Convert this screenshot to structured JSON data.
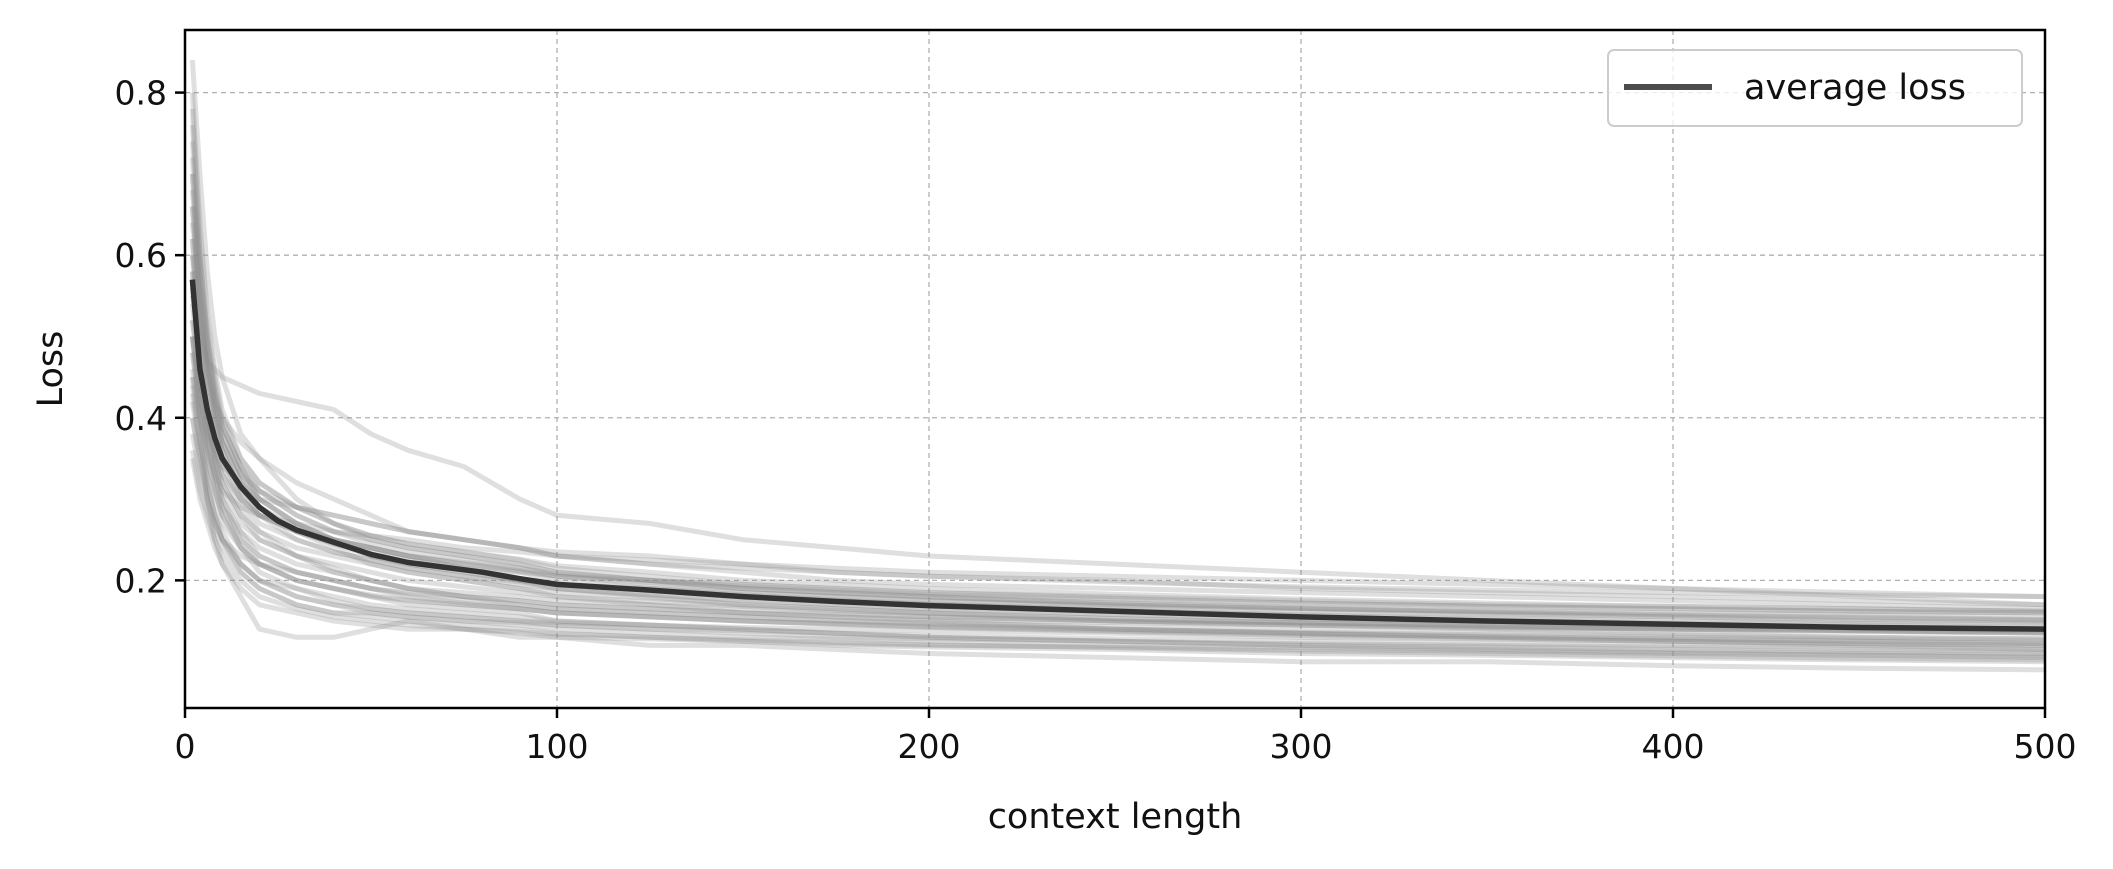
{
  "chart_data": {
    "type": "line",
    "title": "",
    "xlabel": "context length",
    "ylabel": "Loss",
    "xlim": [
      0,
      500
    ],
    "ylim": [
      0.043,
      0.877
    ],
    "xticks": [
      0,
      100,
      200,
      300,
      400,
      500
    ],
    "xtick_labels": [
      "0",
      "100",
      "200",
      "300",
      "400",
      "500"
    ],
    "yticks": [
      0.2,
      0.4,
      0.6,
      0.8
    ],
    "ytick_labels": [
      "0.2",
      "0.4",
      "0.6",
      "0.8"
    ],
    "grid": true,
    "legend": {
      "position": "top-right",
      "entries": [
        "average loss"
      ]
    },
    "colors": {
      "average": "#333333",
      "individual": "#8c8c8c",
      "legend_line": "#4d4d4d",
      "grid": "#b0b0b0"
    },
    "series": [
      {
        "name": "average loss",
        "x": [
          2,
          4,
          6,
          8,
          10,
          15,
          20,
          25,
          30,
          40,
          50,
          60,
          70,
          80,
          90,
          100,
          125,
          150,
          175,
          200,
          250,
          300,
          350,
          400,
          450,
          500
        ],
        "values": [
          0.57,
          0.46,
          0.41,
          0.375,
          0.35,
          0.315,
          0.29,
          0.273,
          0.262,
          0.247,
          0.232,
          0.222,
          0.216,
          0.21,
          0.202,
          0.195,
          0.188,
          0.18,
          0.174,
          0.169,
          0.162,
          0.155,
          0.15,
          0.146,
          0.142,
          0.14
        ]
      }
    ],
    "individual_runs": {
      "count": 40,
      "x": [
        2,
        4,
        6,
        8,
        10,
        15,
        20,
        30,
        40,
        50,
        60,
        75,
        90,
        100,
        125,
        150,
        175,
        200,
        250,
        300,
        350,
        400,
        450,
        500
      ],
      "runs": [
        [
          0.84,
          0.7,
          0.58,
          0.5,
          0.45,
          0.38,
          0.35,
          0.3,
          0.27,
          0.25,
          0.24,
          0.23,
          0.22,
          0.21,
          0.2,
          0.19,
          0.185,
          0.18,
          0.17,
          0.165,
          0.16,
          0.155,
          0.15,
          0.148
        ],
        [
          0.62,
          0.48,
          0.4,
          0.35,
          0.3,
          0.25,
          0.22,
          0.2,
          0.19,
          0.18,
          0.17,
          0.165,
          0.16,
          0.15,
          0.145,
          0.14,
          0.135,
          0.13,
          0.125,
          0.12,
          0.115,
          0.112,
          0.11,
          0.108
        ],
        [
          0.55,
          0.5,
          0.47,
          0.46,
          0.45,
          0.44,
          0.43,
          0.42,
          0.41,
          0.38,
          0.36,
          0.34,
          0.3,
          0.28,
          0.27,
          0.25,
          0.24,
          0.23,
          0.22,
          0.21,
          0.2,
          0.19,
          0.18,
          0.17
        ],
        [
          0.45,
          0.38,
          0.3,
          0.25,
          0.22,
          0.18,
          0.14,
          0.13,
          0.13,
          0.14,
          0.15,
          0.14,
          0.13,
          0.13,
          0.12,
          0.12,
          0.115,
          0.11,
          0.105,
          0.1,
          0.1,
          0.095,
          0.092,
          0.09
        ],
        [
          0.7,
          0.55,
          0.45,
          0.4,
          0.36,
          0.31,
          0.28,
          0.26,
          0.24,
          0.22,
          0.21,
          0.2,
          0.19,
          0.18,
          0.17,
          0.16,
          0.155,
          0.15,
          0.14,
          0.135,
          0.13,
          0.125,
          0.12,
          0.115
        ],
        [
          0.5,
          0.42,
          0.38,
          0.36,
          0.34,
          0.32,
          0.3,
          0.29,
          0.28,
          0.27,
          0.26,
          0.25,
          0.24,
          0.23,
          0.22,
          0.21,
          0.2,
          0.195,
          0.19,
          0.185,
          0.18,
          0.175,
          0.17,
          0.165
        ],
        [
          0.78,
          0.6,
          0.5,
          0.42,
          0.38,
          0.33,
          0.3,
          0.27,
          0.25,
          0.24,
          0.23,
          0.215,
          0.2,
          0.19,
          0.18,
          0.17,
          0.165,
          0.16,
          0.15,
          0.145,
          0.14,
          0.135,
          0.13,
          0.128
        ],
        [
          0.4,
          0.35,
          0.3,
          0.27,
          0.25,
          0.22,
          0.2,
          0.19,
          0.18,
          0.17,
          0.165,
          0.16,
          0.155,
          0.15,
          0.145,
          0.14,
          0.135,
          0.13,
          0.125,
          0.12,
          0.118,
          0.115,
          0.112,
          0.11
        ],
        [
          0.6,
          0.52,
          0.46,
          0.42,
          0.4,
          0.37,
          0.35,
          0.32,
          0.3,
          0.28,
          0.26,
          0.25,
          0.24,
          0.235,
          0.23,
          0.22,
          0.21,
          0.205,
          0.2,
          0.19,
          0.185,
          0.18,
          0.175,
          0.17
        ],
        [
          0.5,
          0.4,
          0.32,
          0.28,
          0.25,
          0.21,
          0.19,
          0.17,
          0.16,
          0.155,
          0.15,
          0.145,
          0.14,
          0.135,
          0.13,
          0.125,
          0.12,
          0.118,
          0.115,
          0.11,
          0.108,
          0.105,
          0.102,
          0.1
        ],
        [
          0.72,
          0.58,
          0.49,
          0.43,
          0.39,
          0.34,
          0.31,
          0.28,
          0.26,
          0.245,
          0.235,
          0.225,
          0.215,
          0.205,
          0.195,
          0.185,
          0.18,
          0.175,
          0.168,
          0.162,
          0.158,
          0.155,
          0.152,
          0.15
        ],
        [
          0.35,
          0.3,
          0.27,
          0.24,
          0.22,
          0.19,
          0.17,
          0.16,
          0.15,
          0.145,
          0.14,
          0.14,
          0.135,
          0.13,
          0.128,
          0.125,
          0.122,
          0.12,
          0.118,
          0.115,
          0.113,
          0.11,
          0.108,
          0.106
        ],
        [
          0.66,
          0.53,
          0.44,
          0.39,
          0.35,
          0.3,
          0.27,
          0.25,
          0.235,
          0.225,
          0.215,
          0.205,
          0.195,
          0.19,
          0.182,
          0.175,
          0.17,
          0.165,
          0.158,
          0.152,
          0.148,
          0.145,
          0.142,
          0.14
        ],
        [
          0.52,
          0.44,
          0.39,
          0.35,
          0.32,
          0.28,
          0.25,
          0.23,
          0.21,
          0.2,
          0.19,
          0.18,
          0.175,
          0.17,
          0.165,
          0.16,
          0.158,
          0.155,
          0.15,
          0.148,
          0.145,
          0.142,
          0.14,
          0.138
        ],
        [
          0.45,
          0.4,
          0.36,
          0.33,
          0.31,
          0.29,
          0.28,
          0.27,
          0.26,
          0.255,
          0.25,
          0.24,
          0.235,
          0.23,
          0.225,
          0.22,
          0.215,
          0.21,
          0.205,
          0.2,
          0.195,
          0.19,
          0.185,
          0.18
        ],
        [
          0.58,
          0.46,
          0.38,
          0.33,
          0.29,
          0.24,
          0.21,
          0.19,
          0.175,
          0.165,
          0.16,
          0.155,
          0.15,
          0.145,
          0.14,
          0.135,
          0.13,
          0.128,
          0.125,
          0.122,
          0.12,
          0.118,
          0.115,
          0.113
        ],
        [
          0.8,
          0.64,
          0.53,
          0.46,
          0.41,
          0.35,
          0.32,
          0.29,
          0.27,
          0.255,
          0.245,
          0.235,
          0.225,
          0.215,
          0.205,
          0.195,
          0.19,
          0.185,
          0.178,
          0.172,
          0.168,
          0.165,
          0.162,
          0.16
        ],
        [
          0.38,
          0.33,
          0.29,
          0.26,
          0.24,
          0.21,
          0.19,
          0.17,
          0.16,
          0.16,
          0.155,
          0.15,
          0.148,
          0.145,
          0.14,
          0.138,
          0.135,
          0.132,
          0.128,
          0.125,
          0.122,
          0.12,
          0.118,
          0.115
        ],
        [
          0.64,
          0.55,
          0.48,
          0.43,
          0.39,
          0.34,
          0.3,
          0.27,
          0.25,
          0.23,
          0.22,
          0.21,
          0.2,
          0.195,
          0.19,
          0.185,
          0.18,
          0.175,
          0.17,
          0.165,
          0.162,
          0.16,
          0.158,
          0.155
        ],
        [
          0.48,
          0.41,
          0.36,
          0.32,
          0.29,
          0.26,
          0.24,
          0.22,
          0.21,
          0.2,
          0.19,
          0.185,
          0.18,
          0.175,
          0.17,
          0.165,
          0.16,
          0.155,
          0.15,
          0.145,
          0.142,
          0.14,
          0.138,
          0.135
        ],
        [
          0.56,
          0.47,
          0.41,
          0.37,
          0.34,
          0.3,
          0.28,
          0.26,
          0.245,
          0.235,
          0.225,
          0.215,
          0.21,
          0.205,
          0.2,
          0.195,
          0.19,
          0.185,
          0.18,
          0.175,
          0.17,
          0.168,
          0.165,
          0.162
        ],
        [
          0.42,
          0.36,
          0.31,
          0.28,
          0.25,
          0.22,
          0.2,
          0.18,
          0.17,
          0.165,
          0.16,
          0.155,
          0.15,
          0.148,
          0.145,
          0.142,
          0.14,
          0.138,
          0.135,
          0.13,
          0.128,
          0.125,
          0.122,
          0.12
        ],
        [
          0.68,
          0.56,
          0.47,
          0.41,
          0.37,
          0.32,
          0.29,
          0.26,
          0.245,
          0.23,
          0.22,
          0.21,
          0.2,
          0.195,
          0.188,
          0.18,
          0.175,
          0.17,
          0.163,
          0.157,
          0.152,
          0.148,
          0.145,
          0.142
        ],
        [
          0.5,
          0.43,
          0.37,
          0.33,
          0.3,
          0.26,
          0.23,
          0.21,
          0.2,
          0.19,
          0.18,
          0.172,
          0.165,
          0.16,
          0.155,
          0.15,
          0.146,
          0.143,
          0.138,
          0.134,
          0.13,
          0.127,
          0.125,
          0.122
        ],
        [
          0.6,
          0.5,
          0.44,
          0.4,
          0.37,
          0.33,
          0.31,
          0.29,
          0.28,
          0.27,
          0.26,
          0.25,
          0.24,
          0.23,
          0.22,
          0.215,
          0.21,
          0.205,
          0.198,
          0.192,
          0.188,
          0.185,
          0.182,
          0.18
        ],
        [
          0.44,
          0.37,
          0.32,
          0.28,
          0.26,
          0.22,
          0.2,
          0.18,
          0.17,
          0.16,
          0.155,
          0.15,
          0.145,
          0.14,
          0.135,
          0.13,
          0.128,
          0.125,
          0.12,
          0.117,
          0.114,
          0.111,
          0.108,
          0.105
        ],
        [
          0.74,
          0.6,
          0.5,
          0.44,
          0.39,
          0.34,
          0.31,
          0.28,
          0.26,
          0.25,
          0.24,
          0.23,
          0.22,
          0.21,
          0.2,
          0.19,
          0.185,
          0.18,
          0.172,
          0.166,
          0.162,
          0.158,
          0.155,
          0.152
        ],
        [
          0.54,
          0.45,
          0.39,
          0.35,
          0.32,
          0.28,
          0.26,
          0.24,
          0.23,
          0.22,
          0.21,
          0.2,
          0.19,
          0.185,
          0.178,
          0.17,
          0.165,
          0.16,
          0.153,
          0.147,
          0.143,
          0.14,
          0.137,
          0.135
        ],
        [
          0.46,
          0.4,
          0.35,
          0.31,
          0.28,
          0.24,
          0.22,
          0.2,
          0.19,
          0.18,
          0.175,
          0.17,
          0.165,
          0.16,
          0.155,
          0.15,
          0.147,
          0.144,
          0.14,
          0.136,
          0.133,
          0.13,
          0.128,
          0.126
        ],
        [
          0.62,
          0.52,
          0.45,
          0.4,
          0.36,
          0.31,
          0.28,
          0.25,
          0.235,
          0.225,
          0.215,
          0.205,
          0.198,
          0.19,
          0.183,
          0.176,
          0.17,
          0.165,
          0.158,
          0.153,
          0.149,
          0.146,
          0.143,
          0.14
        ],
        [
          0.4,
          0.34,
          0.3,
          0.27,
          0.25,
          0.23,
          0.22,
          0.21,
          0.2,
          0.19,
          0.185,
          0.18,
          0.175,
          0.17,
          0.165,
          0.16,
          0.155,
          0.152,
          0.148,
          0.145,
          0.142,
          0.14,
          0.138,
          0.136
        ],
        [
          0.58,
          0.48,
          0.41,
          0.36,
          0.33,
          0.29,
          0.26,
          0.23,
          0.215,
          0.2,
          0.19,
          0.18,
          0.17,
          0.165,
          0.16,
          0.155,
          0.15,
          0.146,
          0.14,
          0.135,
          0.131,
          0.128,
          0.125,
          0.122
        ],
        [
          0.7,
          0.57,
          0.48,
          0.42,
          0.38,
          0.33,
          0.3,
          0.27,
          0.25,
          0.24,
          0.23,
          0.22,
          0.21,
          0.2,
          0.19,
          0.182,
          0.176,
          0.171,
          0.164,
          0.158,
          0.154,
          0.15,
          0.147,
          0.145
        ],
        [
          0.36,
          0.31,
          0.28,
          0.25,
          0.23,
          0.2,
          0.18,
          0.165,
          0.155,
          0.15,
          0.145,
          0.14,
          0.137,
          0.134,
          0.13,
          0.127,
          0.124,
          0.121,
          0.117,
          0.113,
          0.11,
          0.107,
          0.104,
          0.102
        ],
        [
          0.52,
          0.45,
          0.4,
          0.36,
          0.33,
          0.3,
          0.28,
          0.26,
          0.25,
          0.24,
          0.23,
          0.222,
          0.215,
          0.208,
          0.2,
          0.193,
          0.188,
          0.183,
          0.177,
          0.172,
          0.168,
          0.165,
          0.162,
          0.16
        ],
        [
          0.48,
          0.41,
          0.35,
          0.31,
          0.28,
          0.25,
          0.23,
          0.21,
          0.2,
          0.19,
          0.183,
          0.176,
          0.17,
          0.165,
          0.16,
          0.155,
          0.151,
          0.148,
          0.143,
          0.139,
          0.136,
          0.133,
          0.13,
          0.128
        ],
        [
          0.76,
          0.62,
          0.52,
          0.45,
          0.4,
          0.35,
          0.32,
          0.29,
          0.27,
          0.255,
          0.245,
          0.235,
          0.226,
          0.218,
          0.21,
          0.2,
          0.195,
          0.19,
          0.183,
          0.177,
          0.172,
          0.168,
          0.165,
          0.162
        ],
        [
          0.43,
          0.37,
          0.33,
          0.3,
          0.27,
          0.24,
          0.22,
          0.2,
          0.19,
          0.182,
          0.176,
          0.17,
          0.165,
          0.16,
          0.155,
          0.15,
          0.146,
          0.142,
          0.137,
          0.132,
          0.128,
          0.125,
          0.122,
          0.12
        ],
        [
          0.66,
          0.54,
          0.46,
          0.41,
          0.37,
          0.32,
          0.29,
          0.265,
          0.25,
          0.24,
          0.23,
          0.22,
          0.212,
          0.205,
          0.197,
          0.19,
          0.184,
          0.179,
          0.172,
          0.166,
          0.161,
          0.157,
          0.154,
          0.151
        ],
        [
          0.5,
          0.43,
          0.38,
          0.34,
          0.31,
          0.27,
          0.25,
          0.23,
          0.22,
          0.21,
          0.2,
          0.192,
          0.185,
          0.18,
          0.174,
          0.168,
          0.163,
          0.159,
          0.153,
          0.148,
          0.144,
          0.141,
          0.138,
          0.136
        ]
      ]
    }
  }
}
